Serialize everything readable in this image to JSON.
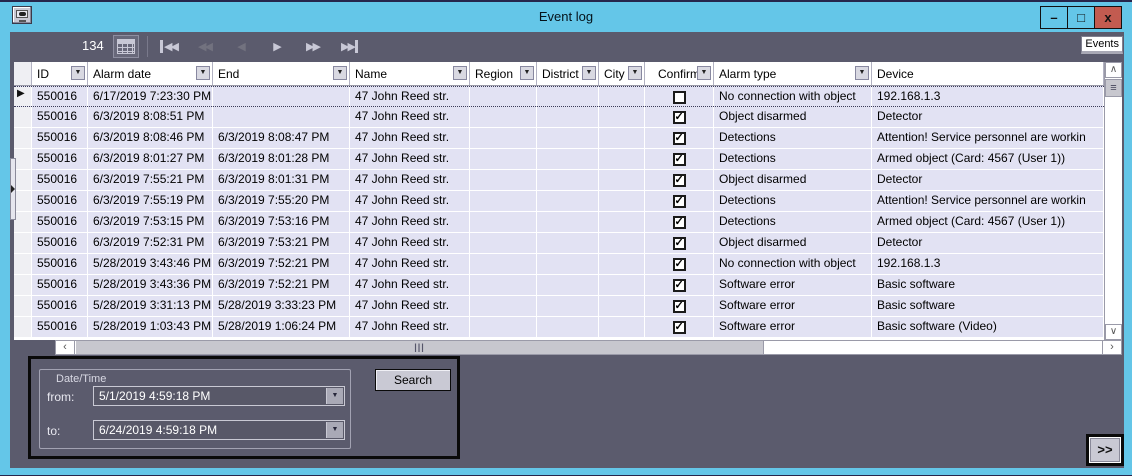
{
  "window": {
    "title": "Event log",
    "minimize_label": "–",
    "maximize_label": "□",
    "close_label": "x"
  },
  "toolbar": {
    "record_count": "134",
    "nav_first": "◀◀",
    "nav_prev_page": "◀◀",
    "nav_prev": "◀",
    "nav_next": "▶",
    "nav_next_page": "▶▶",
    "nav_last": "▶▶",
    "events_tab": "Events"
  },
  "grid": {
    "columns": [
      {
        "key": "id",
        "label": "ID",
        "filter": true
      },
      {
        "key": "alarm_date",
        "label": "Alarm date",
        "filter": true
      },
      {
        "key": "end",
        "label": "End",
        "filter": true
      },
      {
        "key": "name",
        "label": "Name",
        "filter": true
      },
      {
        "key": "region",
        "label": "Region",
        "filter": true
      },
      {
        "key": "district",
        "label": "District",
        "filter": true
      },
      {
        "key": "city",
        "label": "City",
        "filter": true
      },
      {
        "key": "confirm",
        "label": "Confirm",
        "filter": true
      },
      {
        "key": "alarm_type",
        "label": "Alarm type",
        "filter": true
      },
      {
        "key": "device",
        "label": "Device",
        "filter": false
      }
    ],
    "rows": [
      {
        "selected": true,
        "id": "550016",
        "alarm_date": "6/17/2019 7:23:30 PM",
        "end": "",
        "name": "47 John Reed str.",
        "region": "",
        "district": "",
        "city": "",
        "confirmed": false,
        "alarm_type": "No connection with object",
        "device": "192.168.1.3"
      },
      {
        "id": "550016",
        "alarm_date": "6/3/2019 8:08:51 PM",
        "end": "",
        "name": "47 John Reed str.",
        "region": "",
        "district": "",
        "city": "",
        "confirmed": true,
        "alarm_type": "Object disarmed",
        "device": "Detector"
      },
      {
        "id": "550016",
        "alarm_date": "6/3/2019 8:08:46 PM",
        "end": "6/3/2019 8:08:47 PM",
        "name": "47 John Reed str.",
        "region": "",
        "district": "",
        "city": "",
        "confirmed": true,
        "alarm_type": "Detections",
        "device": "Attention! Service personnel are workin"
      },
      {
        "id": "550016",
        "alarm_date": "6/3/2019 8:01:27 PM",
        "end": "6/3/2019 8:01:28 PM",
        "name": "47 John Reed str.",
        "region": "",
        "district": "",
        "city": "",
        "confirmed": true,
        "alarm_type": "Detections",
        "device": "Armed object (Card: 4567 (User 1))"
      },
      {
        "id": "550016",
        "alarm_date": "6/3/2019 7:55:21 PM",
        "end": "6/3/2019 8:01:31 PM",
        "name": "47 John Reed str.",
        "region": "",
        "district": "",
        "city": "",
        "confirmed": true,
        "alarm_type": "Object disarmed",
        "device": "Detector"
      },
      {
        "id": "550016",
        "alarm_date": "6/3/2019 7:55:19 PM",
        "end": "6/3/2019 7:55:20 PM",
        "name": "47 John Reed str.",
        "region": "",
        "district": "",
        "city": "",
        "confirmed": true,
        "alarm_type": "Detections",
        "device": "Attention! Service personnel are workin"
      },
      {
        "id": "550016",
        "alarm_date": "6/3/2019 7:53:15 PM",
        "end": "6/3/2019 7:53:16 PM",
        "name": "47 John Reed str.",
        "region": "",
        "district": "",
        "city": "",
        "confirmed": true,
        "alarm_type": "Detections",
        "device": "Armed object (Card: 4567 (User 1))"
      },
      {
        "id": "550016",
        "alarm_date": "6/3/2019 7:52:31 PM",
        "end": "6/3/2019 7:53:21 PM",
        "name": "47 John Reed str.",
        "region": "",
        "district": "",
        "city": "",
        "confirmed": true,
        "alarm_type": "Object disarmed",
        "device": "Detector"
      },
      {
        "id": "550016",
        "alarm_date": "5/28/2019 3:43:46 PM",
        "end": "6/3/2019 7:52:21 PM",
        "name": "47 John Reed str.",
        "region": "",
        "district": "",
        "city": "",
        "confirmed": true,
        "alarm_type": "No connection with object",
        "device": "192.168.1.3"
      },
      {
        "id": "550016",
        "alarm_date": "5/28/2019 3:43:36 PM",
        "end": "6/3/2019 7:52:21 PM",
        "name": "47 John Reed str.",
        "region": "",
        "district": "",
        "city": "",
        "confirmed": true,
        "alarm_type": "Software error",
        "device": "Basic software"
      },
      {
        "id": "550016",
        "alarm_date": "5/28/2019 3:31:13 PM",
        "end": "5/28/2019 3:33:23 PM",
        "name": "47 John Reed str.",
        "region": "",
        "district": "",
        "city": "",
        "confirmed": true,
        "alarm_type": "Software error",
        "device": "Basic software"
      },
      {
        "id": "550016",
        "alarm_date": "5/28/2019 1:03:43 PM",
        "end": "5/28/2019 1:06:24 PM",
        "name": "47 John Reed str.",
        "region": "",
        "district": "",
        "city": "",
        "confirmed": true,
        "alarm_type": "Software error",
        "device": "Basic software (Video)"
      }
    ],
    "selected_row_marker": "▶",
    "checkbox_check": "✓"
  },
  "scrollbars": {
    "up": "∧",
    "down": "∨",
    "left": "‹",
    "right": "›",
    "v_thumb_grip": "≡",
    "h_thumb_grip": "|||"
  },
  "filter_panel": {
    "group_label": "Date/Time",
    "from_label": "from:",
    "from_value": "5/1/2019 4:59:18 PM",
    "to_label": "to:",
    "to_value": "6/24/2019 4:59:18 PM",
    "search_label": "Search"
  },
  "expand_button_label": ">>",
  "colors": {
    "titlebar_blue": "#64C6E8",
    "panel_gray": "#5B5B6D",
    "row_lavender": "#E2E2F3",
    "close_button_red": "#C25B50",
    "header_bg": "#FFFFFF",
    "button_gray": "#C9C9D4"
  }
}
